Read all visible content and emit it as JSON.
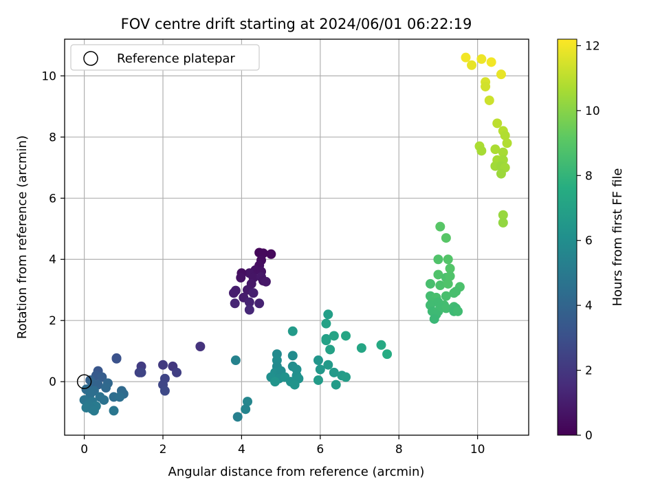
{
  "chart_data": {
    "type": "scatter",
    "title": "FOV centre drift starting at 2024/06/01 06:22:19",
    "xlabel": "Angular distance from reference (arcmin)",
    "ylabel": "Rotation from reference (arcmin)",
    "xlim": [
      -0.5,
      11.3
    ],
    "ylim": [
      -1.75,
      11.2
    ],
    "xticks": [
      "0",
      "2",
      "4",
      "6",
      "8",
      "10"
    ],
    "yticks": [
      "0",
      "2",
      "4",
      "6",
      "8",
      "10"
    ],
    "grid": true,
    "legend": {
      "placement": "upper-left",
      "label": "Reference platepar"
    },
    "reference_point": {
      "x": 0,
      "y": 0
    },
    "colorbar": {
      "label": "Hours from first FF file",
      "range": [
        0,
        12.2
      ],
      "ticks": [
        "0",
        "2",
        "4",
        "6",
        "8",
        "10",
        "12"
      ],
      "colormap": "viridis"
    },
    "points": [
      {
        "x": 4.45,
        "y": 4.22,
        "h": 0.2
      },
      {
        "x": 4.55,
        "y": 4.2,
        "h": 0.3
      },
      {
        "x": 4.75,
        "y": 4.17,
        "h": 0.3
      },
      {
        "x": 4.5,
        "y": 3.97,
        "h": 0.4
      },
      {
        "x": 4.45,
        "y": 3.8,
        "h": 0.5
      },
      {
        "x": 4.35,
        "y": 3.65,
        "h": 0.6
      },
      {
        "x": 4.5,
        "y": 3.6,
        "h": 0.6
      },
      {
        "x": 4.2,
        "y": 3.55,
        "h": 0.7
      },
      {
        "x": 4.0,
        "y": 3.55,
        "h": 0.5
      },
      {
        "x": 3.98,
        "y": 3.4,
        "h": 0.6
      },
      {
        "x": 4.3,
        "y": 3.4,
        "h": 0.7
      },
      {
        "x": 4.5,
        "y": 3.42,
        "h": 0.8
      },
      {
        "x": 4.55,
        "y": 3.3,
        "h": 0.7
      },
      {
        "x": 4.62,
        "y": 3.27,
        "h": 0.8
      },
      {
        "x": 4.25,
        "y": 3.2,
        "h": 0.8
      },
      {
        "x": 4.15,
        "y": 3.0,
        "h": 0.9
      },
      {
        "x": 3.85,
        "y": 2.98,
        "h": 1.0
      },
      {
        "x": 3.8,
        "y": 2.9,
        "h": 1.0
      },
      {
        "x": 4.3,
        "y": 2.9,
        "h": 1.1
      },
      {
        "x": 4.05,
        "y": 2.75,
        "h": 1.0
      },
      {
        "x": 4.2,
        "y": 2.6,
        "h": 1.2
      },
      {
        "x": 3.83,
        "y": 2.56,
        "h": 1.3
      },
      {
        "x": 4.45,
        "y": 2.56,
        "h": 1.2
      },
      {
        "x": 4.2,
        "y": 2.35,
        "h": 1.4
      },
      {
        "x": 2.95,
        "y": 1.15,
        "h": 1.8
      },
      {
        "x": 1.45,
        "y": 0.5,
        "h": 2.2
      },
      {
        "x": 2.0,
        "y": 0.55,
        "h": 2.1
      },
      {
        "x": 2.25,
        "y": 0.5,
        "h": 2.0
      },
      {
        "x": 1.4,
        "y": 0.3,
        "h": 2.4
      },
      {
        "x": 1.45,
        "y": 0.3,
        "h": 2.5
      },
      {
        "x": 2.35,
        "y": 0.3,
        "h": 2.3
      },
      {
        "x": 2.05,
        "y": 0.1,
        "h": 2.5
      },
      {
        "x": 2.0,
        "y": -0.1,
        "h": 2.6
      },
      {
        "x": 2.05,
        "y": -0.3,
        "h": 2.7
      },
      {
        "x": 0.82,
        "y": 0.77,
        "h": 3.0
      },
      {
        "x": 0.82,
        "y": 0.75,
        "h": 3.1
      },
      {
        "x": 0.35,
        "y": 0.35,
        "h": 3.3
      },
      {
        "x": 0.3,
        "y": 0.2,
        "h": 3.5
      },
      {
        "x": 0.45,
        "y": 0.15,
        "h": 3.6
      },
      {
        "x": 0.15,
        "y": 0.05,
        "h": 3.8
      },
      {
        "x": 0.2,
        "y": -0.05,
        "h": 4.0
      },
      {
        "x": 0.35,
        "y": -0.1,
        "h": 3.9
      },
      {
        "x": 0.6,
        "y": -0.05,
        "h": 4.1
      },
      {
        "x": 0.55,
        "y": -0.2,
        "h": 4.2
      },
      {
        "x": 0.05,
        "y": -0.25,
        "h": 4.3
      },
      {
        "x": 0.25,
        "y": -0.3,
        "h": 4.4
      },
      {
        "x": 0.95,
        "y": -0.3,
        "h": 4.2
      },
      {
        "x": 1.0,
        "y": -0.4,
        "h": 4.3
      },
      {
        "x": 0.15,
        "y": -0.4,
        "h": 4.5
      },
      {
        "x": 0.4,
        "y": -0.5,
        "h": 4.6
      },
      {
        "x": 0.75,
        "y": -0.5,
        "h": 4.4
      },
      {
        "x": 0.9,
        "y": -0.5,
        "h": 4.5
      },
      {
        "x": 0.0,
        "y": -0.6,
        "h": 4.7
      },
      {
        "x": 0.2,
        "y": -0.65,
        "h": 4.8
      },
      {
        "x": 0.5,
        "y": -0.6,
        "h": 4.6
      },
      {
        "x": 0.1,
        "y": -0.75,
        "h": 4.9
      },
      {
        "x": 0.3,
        "y": -0.8,
        "h": 5.0
      },
      {
        "x": 0.05,
        "y": -0.85,
        "h": 5.0
      },
      {
        "x": 0.2,
        "y": -0.9,
        "h": 4.9
      },
      {
        "x": 0.25,
        "y": -0.95,
        "h": 5.0
      },
      {
        "x": 0.75,
        "y": -0.95,
        "h": 4.8
      },
      {
        "x": 3.85,
        "y": 0.7,
        "h": 5.4
      },
      {
        "x": 4.15,
        "y": -0.65,
        "h": 5.6
      },
      {
        "x": 4.1,
        "y": -0.9,
        "h": 5.5
      },
      {
        "x": 3.9,
        "y": -1.15,
        "h": 5.3
      },
      {
        "x": 4.9,
        "y": 0.9,
        "h": 5.8
      },
      {
        "x": 4.9,
        "y": 0.7,
        "h": 5.9
      },
      {
        "x": 4.9,
        "y": 0.5,
        "h": 5.8
      },
      {
        "x": 5.3,
        "y": 0.85,
        "h": 5.9
      },
      {
        "x": 4.85,
        "y": 0.3,
        "h": 6.0
      },
      {
        "x": 5.0,
        "y": 0.35,
        "h": 5.9
      },
      {
        "x": 5.3,
        "y": 0.5,
        "h": 6.0
      },
      {
        "x": 5.4,
        "y": 0.4,
        "h": 6.1
      },
      {
        "x": 4.75,
        "y": 0.15,
        "h": 6.1
      },
      {
        "x": 4.95,
        "y": 0.1,
        "h": 6.0
      },
      {
        "x": 5.1,
        "y": 0.15,
        "h": 6.2
      },
      {
        "x": 5.4,
        "y": 0.2,
        "h": 6.1
      },
      {
        "x": 5.45,
        "y": 0.1,
        "h": 6.2
      },
      {
        "x": 4.85,
        "y": 0.0,
        "h": 6.3
      },
      {
        "x": 5.25,
        "y": 0.0,
        "h": 6.2
      },
      {
        "x": 5.35,
        "y": -0.1,
        "h": 6.3
      },
      {
        "x": 5.3,
        "y": 1.65,
        "h": 6.6
      },
      {
        "x": 5.95,
        "y": 0.7,
        "h": 6.4
      },
      {
        "x": 6.0,
        "y": 0.4,
        "h": 6.5
      },
      {
        "x": 6.2,
        "y": 0.55,
        "h": 6.6
      },
      {
        "x": 6.35,
        "y": 0.3,
        "h": 6.6
      },
      {
        "x": 5.95,
        "y": 0.05,
        "h": 6.7
      },
      {
        "x": 6.55,
        "y": 0.2,
        "h": 6.7
      },
      {
        "x": 6.65,
        "y": 0.15,
        "h": 6.8
      },
      {
        "x": 6.4,
        "y": -0.1,
        "h": 6.7
      },
      {
        "x": 6.2,
        "y": 2.2,
        "h": 6.9
      },
      {
        "x": 6.15,
        "y": 1.9,
        "h": 7.0
      },
      {
        "x": 6.15,
        "y": 1.4,
        "h": 6.9
      },
      {
        "x": 6.15,
        "y": 1.35,
        "h": 7.0
      },
      {
        "x": 6.35,
        "y": 1.5,
        "h": 7.1
      },
      {
        "x": 6.65,
        "y": 1.5,
        "h": 7.2
      },
      {
        "x": 6.25,
        "y": 1.05,
        "h": 7.0
      },
      {
        "x": 7.05,
        "y": 1.1,
        "h": 7.2
      },
      {
        "x": 7.55,
        "y": 1.2,
        "h": 7.4
      },
      {
        "x": 7.7,
        "y": 0.9,
        "h": 7.5
      },
      {
        "x": 9.05,
        "y": 5.07,
        "h": 9.0
      },
      {
        "x": 9.2,
        "y": 4.7,
        "h": 9.0
      },
      {
        "x": 9.0,
        "y": 4.0,
        "h": 8.8
      },
      {
        "x": 9.25,
        "y": 4.0,
        "h": 8.9
      },
      {
        "x": 9.3,
        "y": 3.7,
        "h": 8.9
      },
      {
        "x": 9.0,
        "y": 3.5,
        "h": 8.8
      },
      {
        "x": 9.2,
        "y": 3.4,
        "h": 8.7
      },
      {
        "x": 9.3,
        "y": 3.45,
        "h": 8.8
      },
      {
        "x": 8.8,
        "y": 3.2,
        "h": 8.6
      },
      {
        "x": 9.05,
        "y": 3.15,
        "h": 8.7
      },
      {
        "x": 9.25,
        "y": 3.2,
        "h": 8.8
      },
      {
        "x": 9.55,
        "y": 3.1,
        "h": 8.7
      },
      {
        "x": 9.45,
        "y": 2.95,
        "h": 8.6
      },
      {
        "x": 9.4,
        "y": 2.9,
        "h": 8.6
      },
      {
        "x": 8.8,
        "y": 2.8,
        "h": 8.5
      },
      {
        "x": 8.95,
        "y": 2.75,
        "h": 8.6
      },
      {
        "x": 9.2,
        "y": 2.8,
        "h": 8.6
      },
      {
        "x": 8.85,
        "y": 2.6,
        "h": 8.5
      },
      {
        "x": 9.0,
        "y": 2.6,
        "h": 8.4
      },
      {
        "x": 9.15,
        "y": 2.5,
        "h": 8.5
      },
      {
        "x": 8.8,
        "y": 2.5,
        "h": 8.4
      },
      {
        "x": 9.05,
        "y": 2.45,
        "h": 8.4
      },
      {
        "x": 9.2,
        "y": 2.4,
        "h": 8.5
      },
      {
        "x": 9.4,
        "y": 2.45,
        "h": 8.4
      },
      {
        "x": 9.45,
        "y": 2.4,
        "h": 8.3
      },
      {
        "x": 8.85,
        "y": 2.3,
        "h": 8.3
      },
      {
        "x": 9.0,
        "y": 2.3,
        "h": 8.4
      },
      {
        "x": 9.4,
        "y": 2.3,
        "h": 8.3
      },
      {
        "x": 9.5,
        "y": 2.3,
        "h": 8.4
      },
      {
        "x": 8.95,
        "y": 2.2,
        "h": 8.3
      },
      {
        "x": 8.9,
        "y": 2.05,
        "h": 8.2
      },
      {
        "x": 10.65,
        "y": 5.45,
        "h": 10.3
      },
      {
        "x": 10.65,
        "y": 5.2,
        "h": 10.2
      },
      {
        "x": 9.7,
        "y": 10.6,
        "h": 12.0
      },
      {
        "x": 10.1,
        "y": 10.55,
        "h": 11.9
      },
      {
        "x": 10.35,
        "y": 10.45,
        "h": 12.0
      },
      {
        "x": 9.85,
        "y": 10.35,
        "h": 11.8
      },
      {
        "x": 10.6,
        "y": 10.05,
        "h": 11.8
      },
      {
        "x": 10.2,
        "y": 9.8,
        "h": 11.5
      },
      {
        "x": 10.2,
        "y": 9.65,
        "h": 11.4
      },
      {
        "x": 10.3,
        "y": 9.2,
        "h": 11.3
      },
      {
        "x": 10.5,
        "y": 8.45,
        "h": 11.0
      },
      {
        "x": 10.65,
        "y": 8.2,
        "h": 10.9
      },
      {
        "x": 10.7,
        "y": 8.05,
        "h": 10.8
      },
      {
        "x": 10.75,
        "y": 7.8,
        "h": 10.8
      },
      {
        "x": 10.05,
        "y": 7.7,
        "h": 10.7
      },
      {
        "x": 10.45,
        "y": 7.6,
        "h": 10.7
      },
      {
        "x": 10.1,
        "y": 7.55,
        "h": 10.6
      },
      {
        "x": 10.65,
        "y": 7.5,
        "h": 10.6
      },
      {
        "x": 10.5,
        "y": 7.25,
        "h": 10.6
      },
      {
        "x": 10.65,
        "y": 7.25,
        "h": 10.5
      },
      {
        "x": 10.45,
        "y": 7.05,
        "h": 10.5
      },
      {
        "x": 10.6,
        "y": 7.05,
        "h": 10.4
      },
      {
        "x": 10.7,
        "y": 7.0,
        "h": 10.5
      },
      {
        "x": 10.6,
        "y": 6.8,
        "h": 10.4
      }
    ]
  }
}
